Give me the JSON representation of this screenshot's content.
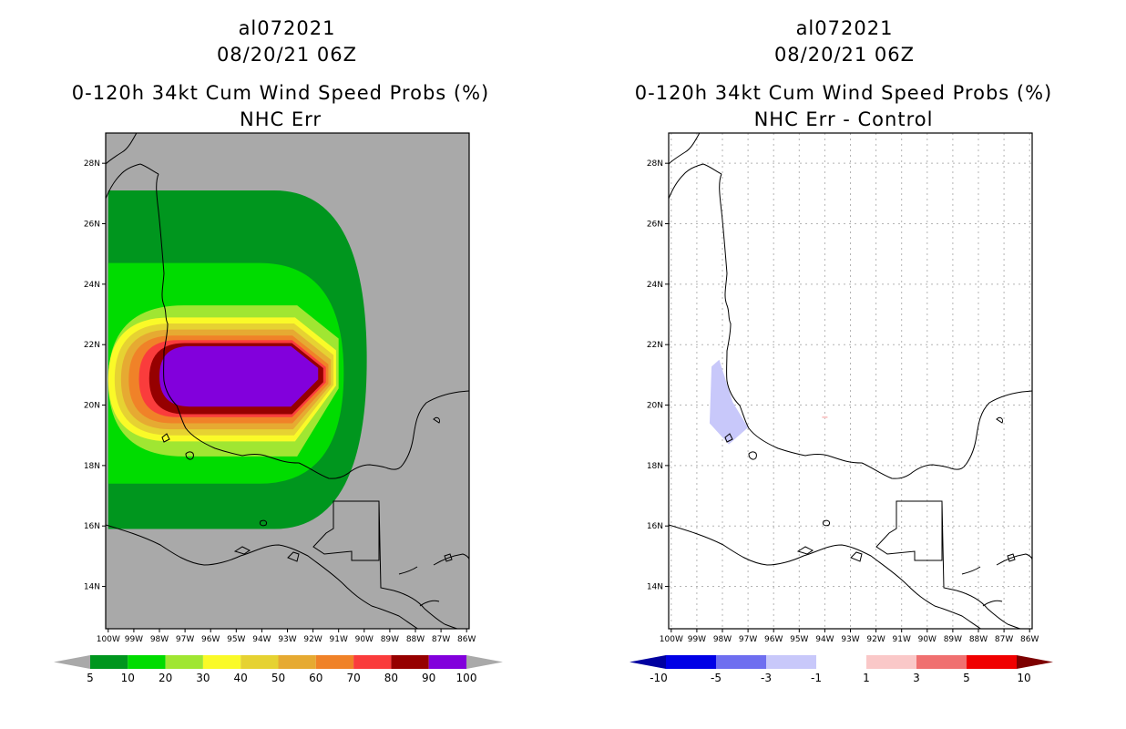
{
  "chart_data": [
    {
      "type": "heatmap",
      "storm_id": "al072021",
      "datetime": "08/20/21 06Z",
      "title": "0-120h 34kt Cum Wind Speed Probs (%)",
      "subtitle": "NHC Err",
      "x_ticks": [
        "100W",
        "99W",
        "98W",
        "97W",
        "96W",
        "95W",
        "94W",
        "93W",
        "92W",
        "91W",
        "90W",
        "89W",
        "88W",
        "87W",
        "86W"
      ],
      "y_ticks": [
        "28N",
        "26N",
        "24N",
        "22N",
        "20N",
        "18N",
        "16N",
        "14N"
      ],
      "xlim": [
        -100.1,
        -85.9
      ],
      "ylim": [
        12.6,
        29.0
      ],
      "grid": false,
      "background_color": "#a9a9a9",
      "colorbar": {
        "labels": [
          "5",
          "10",
          "20",
          "30",
          "40",
          "50",
          "60",
          "70",
          "80",
          "90",
          "100"
        ],
        "colors": [
          "#00961e",
          "#00dc00",
          "#a0e632",
          "#fafa28",
          "#e6d232",
          "#e6aa32",
          "#f08228",
          "#fa3c3c",
          "#960000",
          "#8200dc"
        ],
        "end_color": "#a9a9a9"
      },
      "contour_levels": [
        {
          "threshold": 5,
          "color": "#00961e",
          "lon_min": -100.0,
          "lon_max": -89.9,
          "lat_min": 15.9,
          "lat_max": 27.1
        },
        {
          "threshold": 10,
          "color": "#00dc00",
          "lon_min": -100.0,
          "lon_max": -90.8,
          "lat_min": 17.4,
          "lat_max": 24.7
        },
        {
          "threshold": 20,
          "color": "#a0e632",
          "lon_min": -100.0,
          "lon_max": -91.0,
          "lat_min": 18.3,
          "lat_max": 23.3
        },
        {
          "threshold": 30,
          "color": "#fafa28",
          "lon_min": -100.0,
          "lon_max": -91.1,
          "lat_min": 18.8,
          "lat_max": 22.9
        },
        {
          "threshold": 40,
          "color": "#e6d232",
          "lon_min": -99.75,
          "lon_max": -91.2,
          "lat_min": 19.0,
          "lat_max": 22.7
        },
        {
          "threshold": 50,
          "color": "#e6aa32",
          "lon_min": -99.5,
          "lon_max": -91.3,
          "lat_min": 19.2,
          "lat_max": 22.5
        },
        {
          "threshold": 60,
          "color": "#f08228",
          "lon_min": -99.2,
          "lon_max": -91.4,
          "lat_min": 19.4,
          "lat_max": 22.3
        },
        {
          "threshold": 70,
          "color": "#fa3c3c",
          "lon_min": -98.8,
          "lon_max": -91.5,
          "lat_min": 19.6,
          "lat_max": 22.15
        },
        {
          "threshold": 80,
          "color": "#960000",
          "lon_min": -98.4,
          "lon_max": -91.6,
          "lat_min": 19.7,
          "lat_max": 22.05
        },
        {
          "threshold": 90,
          "color": "#8200dc",
          "lon_min": -98.0,
          "lon_max": -91.8,
          "lat_min": 19.95,
          "lat_max": 21.95
        }
      ]
    },
    {
      "type": "heatmap",
      "storm_id": "al072021",
      "datetime": "08/20/21 06Z",
      "title": "0-120h 34kt Cum Wind Speed Probs (%)",
      "subtitle": "NHC Err - Control",
      "x_ticks": [
        "100W",
        "99W",
        "98W",
        "97W",
        "96W",
        "95W",
        "94W",
        "93W",
        "92W",
        "91W",
        "90W",
        "89W",
        "88W",
        "87W",
        "86W"
      ],
      "y_ticks": [
        "28N",
        "26N",
        "24N",
        "22N",
        "20N",
        "18N",
        "16N",
        "14N"
      ],
      "xlim": [
        -100.1,
        -85.9
      ],
      "ylim": [
        12.6,
        29.0
      ],
      "grid": true,
      "background_color": "#ffffff",
      "colorbar": {
        "labels": [
          "-10",
          "-5",
          "-3",
          "-1",
          "1",
          "3",
          "5",
          "10"
        ],
        "colors": [
          "#0000e6",
          "#6e6ef0",
          "#c8c8fa",
          "#ffffff",
          "#fac8c8",
          "#f07070",
          "#f00000"
        ],
        "low_end_color": "#0000a0",
        "high_end_color": "#7d0000"
      },
      "anomalies": [
        {
          "color": "#c8c8fa",
          "range": "-3 to -1",
          "lon_min": -98.5,
          "lon_max": -97.0,
          "lat_min": 18.7,
          "lat_max": 21.5
        },
        {
          "color": "#fac8c8",
          "range": "1 to 3",
          "lon": -94.0,
          "lat": 19.6
        }
      ]
    }
  ]
}
